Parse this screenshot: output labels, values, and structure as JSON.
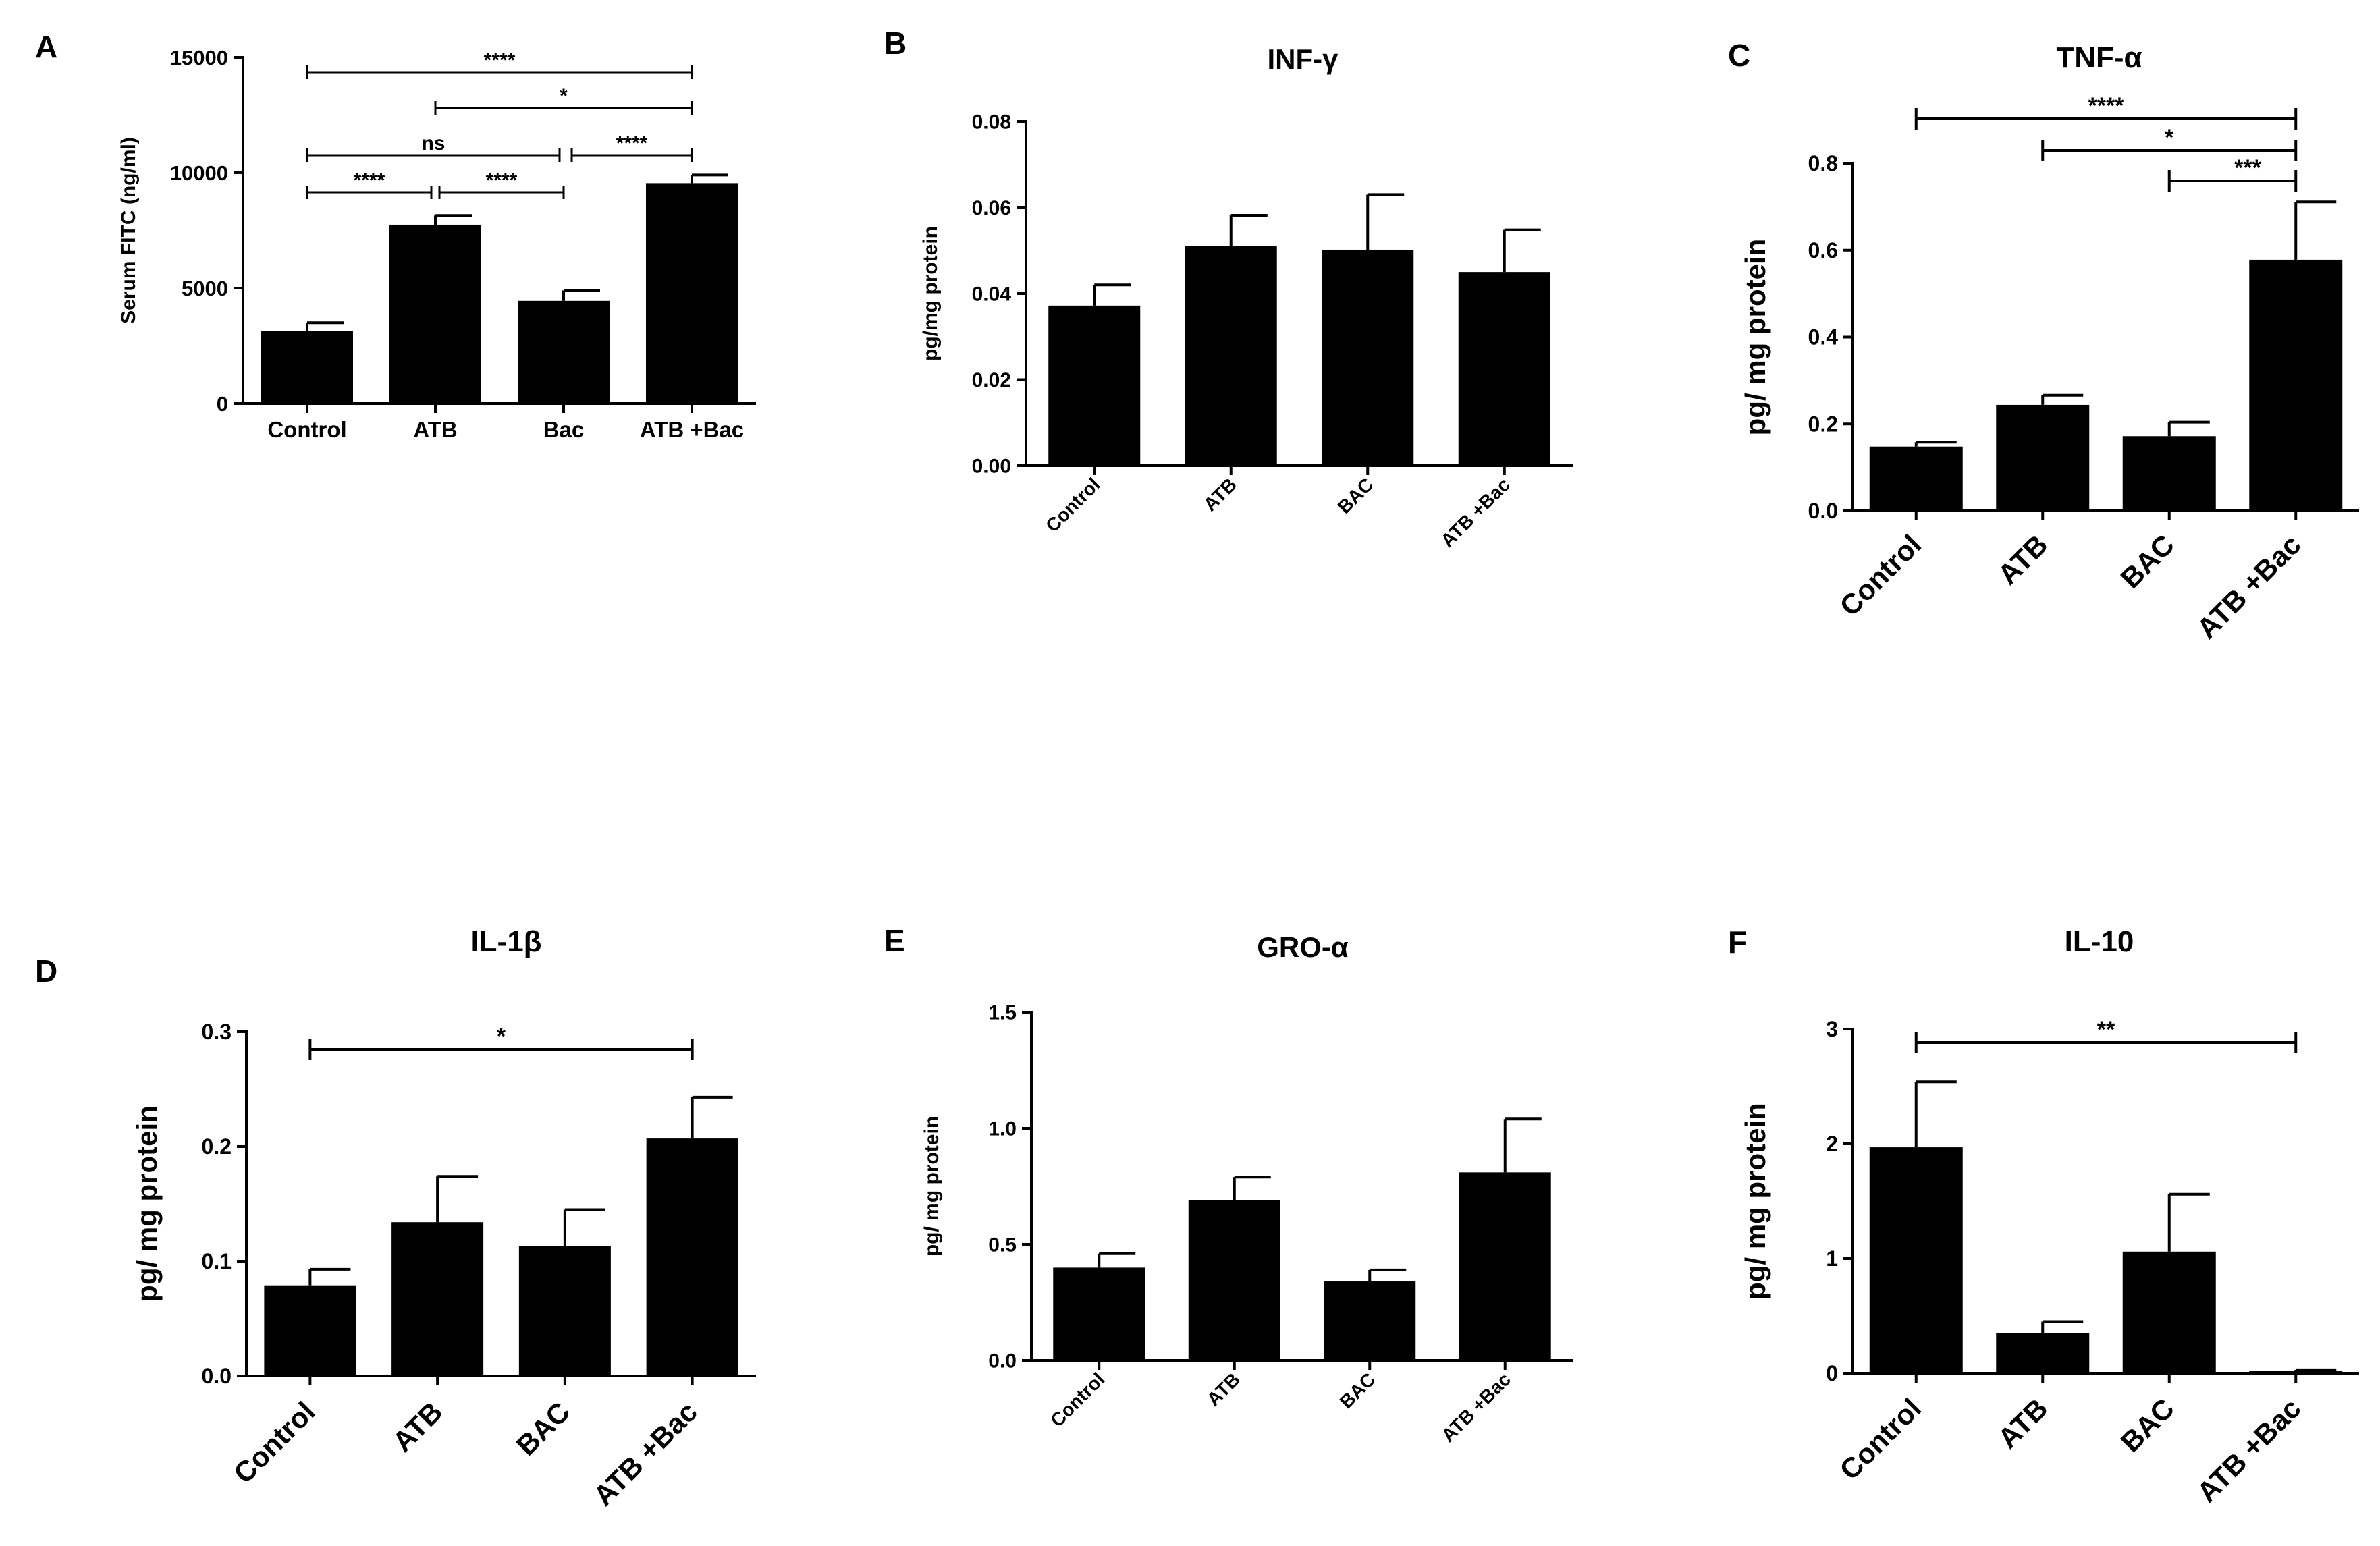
{
  "chart_data": [
    {
      "panel": "A",
      "type": "bar",
      "title": "",
      "xlabel": "",
      "ylabel": "Serum FITC (ng/ml)",
      "ylim": [
        0,
        15000
      ],
      "ytick_values": [
        0,
        5000,
        10000,
        15000
      ],
      "ytick_labels": [
        "0",
        "5000",
        "10000",
        "15000"
      ],
      "categories": [
        "Control",
        "ATB",
        "Bac",
        "ATB +Bac"
      ],
      "values": [
        3150,
        7750,
        4450,
        9550
      ],
      "errors": [
        350,
        400,
        450,
        350
      ],
      "category_label_rotation": 0,
      "significance": [
        {
          "from": 0,
          "to": 3,
          "label": "****"
        },
        {
          "from": 1,
          "to": 3,
          "label": "*"
        },
        {
          "from": 0,
          "to": 2,
          "label": "ns"
        },
        {
          "from": 2,
          "to": 3,
          "label": "****"
        },
        {
          "from": 0,
          "to": 1,
          "label": "****"
        },
        {
          "from": 1,
          "to": 2,
          "label": "****"
        }
      ]
    },
    {
      "panel": "B",
      "type": "bar",
      "title": "INF-γ",
      "xlabel": "",
      "ylabel": "pg/mg protein",
      "ylim": [
        0,
        0.08
      ],
      "ytick_values": [
        0,
        0.02,
        0.04,
        0.06,
        0.08
      ],
      "ytick_labels": [
        "0.00",
        "0.02",
        "0.04",
        "0.06",
        "0.08"
      ],
      "categories": [
        "Control",
        "ATB",
        "BAC",
        "ATB +Bac"
      ],
      "values": [
        0.0372,
        0.051,
        0.0502,
        0.045
      ],
      "errors": [
        0.0048,
        0.0072,
        0.0128,
        0.0098
      ],
      "category_label_rotation": -45,
      "significance": []
    },
    {
      "panel": "C",
      "type": "bar",
      "title": "TNF-α",
      "xlabel": "",
      "ylabel": "pg/ mg protein",
      "ylim": [
        0,
        0.8
      ],
      "ytick_values": [
        0,
        0.2,
        0.4,
        0.6,
        0.8
      ],
      "ytick_labels": [
        "0.0",
        "0.2",
        "0.4",
        "0.6",
        "0.8"
      ],
      "categories": [
        "Control",
        "ATB",
        "BAC",
        "ATB +Bac"
      ],
      "values": [
        0.148,
        0.244,
        0.172,
        0.578
      ],
      "errors": [
        0.01,
        0.022,
        0.032,
        0.133
      ],
      "category_label_rotation": -45,
      "significance": [
        {
          "from": 0,
          "to": 3,
          "label": "****"
        },
        {
          "from": 1,
          "to": 3,
          "label": "*"
        },
        {
          "from": 2,
          "to": 3,
          "label": "***"
        }
      ]
    },
    {
      "panel": "D",
      "type": "bar",
      "title": "IL-1β",
      "xlabel": "",
      "ylabel": "pg/ mg protein",
      "ylim": [
        0,
        0.3
      ],
      "ytick_values": [
        0,
        0.1,
        0.2,
        0.3
      ],
      "ytick_labels": [
        "0.0",
        "0.1",
        "0.2",
        "0.3"
      ],
      "categories": [
        "Control",
        "ATB",
        "BAC",
        "ATB +Bac"
      ],
      "values": [
        0.079,
        0.134,
        0.113,
        0.207
      ],
      "errors": [
        0.014,
        0.04,
        0.032,
        0.036
      ],
      "category_label_rotation": -45,
      "significance": [
        {
          "from": 0,
          "to": 3,
          "label": "*"
        }
      ]
    },
    {
      "panel": "E",
      "type": "bar",
      "title": "GRO-α",
      "xlabel": "",
      "ylabel": "pg/ mg protein",
      "ylim": [
        0,
        1.5
      ],
      "ytick_values": [
        0,
        0.5,
        1.0,
        1.5
      ],
      "ytick_labels": [
        "0.0",
        "0.5",
        "1.0",
        "1.5"
      ],
      "categories": [
        "Control",
        "ATB",
        "BAC",
        "ATB +Bac"
      ],
      "values": [
        0.4,
        0.69,
        0.34,
        0.81
      ],
      "errors": [
        0.06,
        0.1,
        0.05,
        0.23
      ],
      "category_label_rotation": -45,
      "significance": []
    },
    {
      "panel": "F",
      "type": "bar",
      "title": "IL-10",
      "xlabel": "",
      "ylabel": "pg/ mg protein",
      "ylim": [
        0,
        3
      ],
      "ytick_values": [
        0,
        1,
        2,
        3
      ],
      "ytick_labels": [
        "0",
        "1",
        "2",
        "3"
      ],
      "categories": [
        "Control",
        "ATB",
        "BAC",
        "ATB +Bac"
      ],
      "values": [
        1.97,
        0.35,
        1.06,
        0.02
      ],
      "errors": [
        0.57,
        0.1,
        0.5,
        0.01
      ],
      "category_label_rotation": -45,
      "significance": [
        {
          "from": 0,
          "to": 3,
          "label": "**"
        }
      ]
    }
  ],
  "colors": {
    "bar": "#000000",
    "axis": "#000000",
    "background": "#ffffff"
  }
}
